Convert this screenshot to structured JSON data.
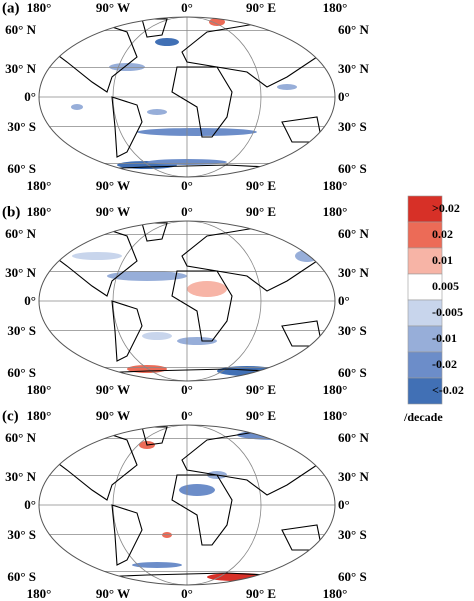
{
  "panels": [
    {
      "label": "(a)"
    },
    {
      "label": "(b)"
    },
    {
      "label": "(c)"
    }
  ],
  "axes": {
    "lon_labels": [
      "180°",
      "90° W",
      "0°",
      "90° E",
      "180°"
    ],
    "lat_labels": [
      "60° N",
      "30° N",
      "0°",
      "30° S",
      "60° S"
    ]
  },
  "legend": {
    "items": [
      {
        "label": ">0.02",
        "color": "#d73027"
      },
      {
        "label": "0.02",
        "color": "#ec6b57"
      },
      {
        "label": "0.01",
        "color": "#f7b4a6"
      },
      {
        "label": "0.005",
        "color": "#ffffff"
      },
      {
        "label": "-0.005",
        "color": "#c8d5ec"
      },
      {
        "label": "-0.01",
        "color": "#97aed9"
      },
      {
        "label": "-0.02",
        "color": "#6c8dc9"
      },
      {
        "label": "<-0.02",
        "color": "#4170b5"
      }
    ],
    "unit": "/decade"
  }
}
